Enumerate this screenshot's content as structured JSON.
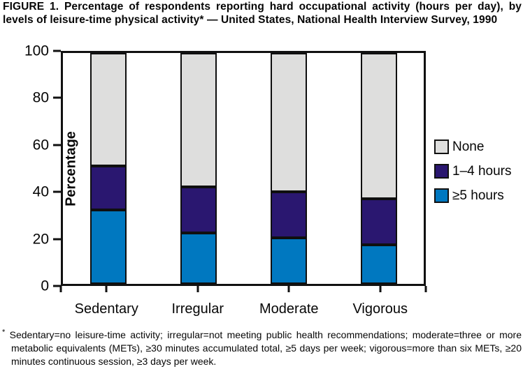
{
  "figure": {
    "title": "FIGURE 1. Percentage of respondents reporting hard occupational activity (hours per day), by levels of leisure-time physical activity* — United States, National Health Interview Survey, 1990",
    "footnote_marker": "*",
    "footnote_text": "Sedentary=no leisure-time activity; irregular=not meeting public health recommendations; moderate=three or more metabolic equivalents (METs), ≥30 minutes accumulated total, ≥5 days per week; vigorous=more than six METs, ≥20 minutes continuous session, ≥3 days per week."
  },
  "chart_data": {
    "type": "bar",
    "stacked": true,
    "title": "",
    "xlabel": "",
    "ylabel": "Percentage",
    "ylim": [
      0,
      100
    ],
    "yticks": [
      0,
      20,
      40,
      60,
      80,
      100
    ],
    "grid": false,
    "categories": [
      "Sedentary",
      "Irregular",
      "Moderate",
      "Vigorous"
    ],
    "series": [
      {
        "name": "≥5 hours",
        "color": "#0078C0",
        "values": [
          32,
          22,
          20,
          17
        ]
      },
      {
        "name": "1–4 hours",
        "color": "#2A1770",
        "values": [
          19,
          20,
          20,
          20
        ]
      },
      {
        "name": "None",
        "color": "#DEDEDD",
        "values": [
          49,
          58,
          60,
          63
        ]
      }
    ],
    "legend": [
      "None",
      "1–4 hours",
      "≥5 hours"
    ],
    "legend_position": "right",
    "axis_color": "#111111",
    "background_color": "#FFFFFF"
  }
}
